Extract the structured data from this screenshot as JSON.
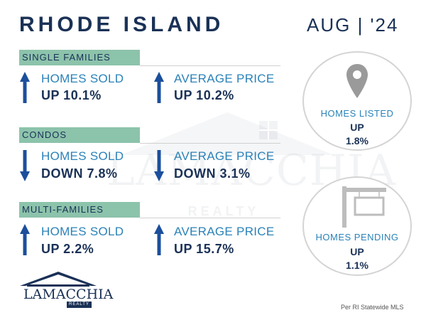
{
  "header": {
    "title": "RHODE ISLAND",
    "date": "AUG | '24"
  },
  "watermark": {
    "brand": "LAMACCHIA",
    "sub": "REALTY"
  },
  "sections": [
    {
      "label": "SINGLE FAMILIES",
      "metrics": [
        {
          "label": "HOMES SOLD",
          "value": "UP 10.1%",
          "direction": "up"
        },
        {
          "label": "AVERAGE PRICE",
          "value": "UP 10.2%",
          "direction": "up"
        }
      ]
    },
    {
      "label": "CONDOS",
      "metrics": [
        {
          "label": "HOMES SOLD",
          "value": "DOWN 7.8%",
          "direction": "down"
        },
        {
          "label": "AVERAGE PRICE",
          "value": "DOWN 3.1%",
          "direction": "down"
        }
      ]
    },
    {
      "label": "MULTI-FAMILIES",
      "metrics": [
        {
          "label": "HOMES SOLD",
          "value": "UP 2.2%",
          "direction": "up"
        },
        {
          "label": "AVERAGE PRICE",
          "value": "UP 15.7%",
          "direction": "up"
        }
      ]
    }
  ],
  "circles": [
    {
      "label": "HOMES LISTED",
      "direction": "UP",
      "percent": "1.8%",
      "icon": "map-pin-icon"
    },
    {
      "label": "HOMES PENDING",
      "direction": "UP",
      "percent": "1.1%",
      "icon": "sign-post-icon"
    }
  ],
  "logo": {
    "brand": "LAMACCHIA",
    "sub": "REALTY"
  },
  "footer": {
    "source": "Per RI Statewide MLS"
  },
  "colors": {
    "navy": "#1a3156",
    "band": "#8cc3ab",
    "label_blue": "#2a82b8",
    "arrow": "#1b4f9c"
  }
}
